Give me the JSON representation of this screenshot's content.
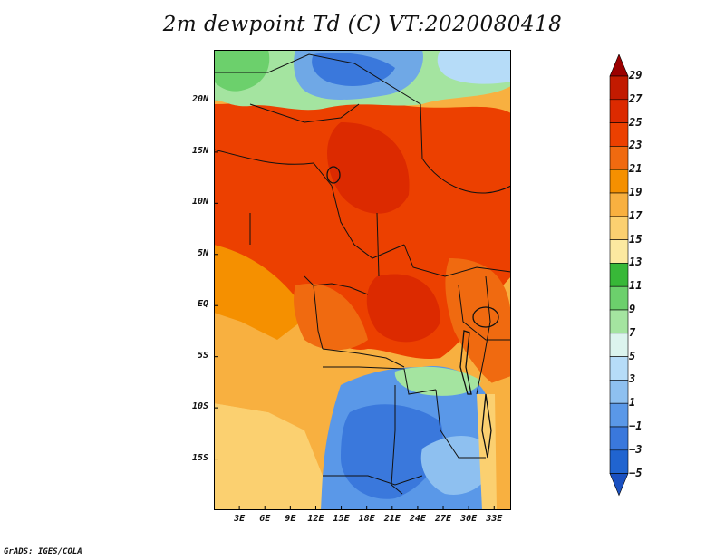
{
  "title": "2m dewpoint Td (C) VT:2020080418",
  "credit": "GrADS: IGES/COLA",
  "lat_labels": [
    "20N",
    "15N",
    "10N",
    "5N",
    "EQ",
    "5S",
    "10S",
    "15S"
  ],
  "lat_values": [
    20,
    15,
    10,
    5,
    0,
    -5,
    -10,
    -15
  ],
  "lon_labels": [
    "3E",
    "6E",
    "9E",
    "12E",
    "15E",
    "18E",
    "21E",
    "24E",
    "27E",
    "30E",
    "33E"
  ],
  "lon_values": [
    3,
    6,
    9,
    12,
    15,
    18,
    21,
    24,
    27,
    30,
    33
  ],
  "extent": {
    "lon_min": 0,
    "lon_max": 35,
    "lat_min": -20,
    "lat_max": 25
  },
  "colorbar": {
    "labels": [
      "29",
      "27",
      "25",
      "23",
      "21",
      "19",
      "17",
      "15",
      "13",
      "11",
      "9",
      "7",
      "5",
      "3",
      "1",
      "−1",
      "−3",
      "−5"
    ],
    "colors": [
      "#9b0000",
      "#c21a00",
      "#dc2a00",
      "#ec4000",
      "#f06a10",
      "#f59000",
      "#f8b040",
      "#fbd070",
      "#fce9a0",
      "#38b838",
      "#6cd06c",
      "#a4e4a0",
      "#dcf4ee",
      "#b6dcf8",
      "#8ec0f0",
      "#5a98e8",
      "#3a78dc",
      "#2064d0",
      "#1a50c0"
    ]
  }
}
